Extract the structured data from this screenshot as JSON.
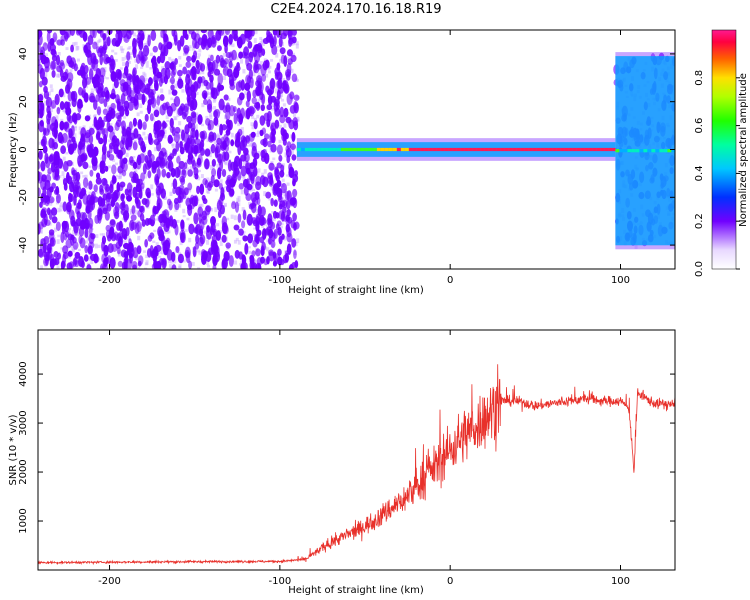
{
  "title": "C2E4.2024.170.16.18.R19",
  "colors": {
    "snr_line": "#e8302a",
    "spectrogram_noise": "#7000ff",
    "band_core": "#ff1a55"
  },
  "chart_data": [
    {
      "type": "heatmap",
      "title": "",
      "xlabel": "Height of straight line (km)",
      "ylabel": "Frequency (Hz)",
      "xlim": [
        -242,
        132
      ],
      "ylim": [
        -50,
        50
      ],
      "x_ticks": [
        "-200",
        "-100",
        "0",
        "100"
      ],
      "y_ticks": [
        "-40",
        "-20",
        "0",
        "20",
        "40"
      ],
      "colorbar": {
        "label": "Normalized spectral amplitude",
        "range": [
          0,
          1
        ],
        "ticks": [
          "0.0",
          "0.2",
          "0.4",
          "0.6",
          "0.8"
        ]
      },
      "regions": [
        {
          "x_range": [
            -242,
            -90
          ],
          "description": "broadband noise",
          "freq_range": [
            -50,
            50
          ],
          "amplitude": 0.15
        },
        {
          "x_range": [
            -90,
            97
          ],
          "description": "narrow band",
          "freq_range": [
            -3,
            4
          ],
          "amplitude": 0.85
        },
        {
          "x_range": [
            97,
            132
          ],
          "description": "narrow band with noise",
          "freq_range": [
            -40,
            40
          ],
          "amplitude": 0.3
        }
      ]
    },
    {
      "type": "line",
      "title": "",
      "xlabel": "Height of straight line (km)",
      "ylabel": "SNR (10 * v/v)",
      "xlim": [
        -242,
        132
      ],
      "ylim": [
        0,
        4900
      ],
      "x_ticks": [
        "-200",
        "-100",
        "0",
        "100"
      ],
      "y_ticks": [
        "1000",
        "2000",
        "3000",
        "4000"
      ],
      "series": [
        {
          "x": [
            -242,
            -200,
            -150,
            -100,
            -85,
            -75,
            -65,
            -55,
            -45,
            -35,
            -25,
            -15,
            -5,
            5,
            15,
            25,
            30,
            40,
            50,
            60,
            70,
            80,
            90,
            100,
            105,
            108,
            110,
            120,
            132
          ],
          "values": [
            150,
            160,
            170,
            175,
            220,
            450,
            650,
            800,
            1000,
            1250,
            1500,
            1900,
            2250,
            2650,
            2950,
            3250,
            3450,
            3450,
            3350,
            3400,
            3450,
            3500,
            3450,
            3450,
            3300,
            2000,
            3600,
            3400,
            3380
          ]
        }
      ]
    }
  ]
}
